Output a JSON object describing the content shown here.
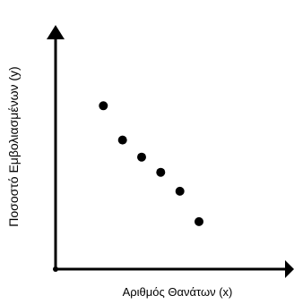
{
  "chart_data": {
    "type": "scatter",
    "title": "",
    "xlabel": "Αριθμός Θανάτων (x)",
    "ylabel": "Ποσοστό Εμβολιασμένων (y)",
    "points": [
      {
        "x": 1.0,
        "y": 8.4
      },
      {
        "x": 2.0,
        "y": 6.6
      },
      {
        "x": 3.0,
        "y": 5.7
      },
      {
        "x": 4.0,
        "y": 4.9
      },
      {
        "x": 5.0,
        "y": 3.9
      },
      {
        "x": 6.0,
        "y": 2.3
      }
    ],
    "xlim": [
      -1.5,
      10.5
    ],
    "ylim": [
      -0.2,
      11.9
    ],
    "grid": false,
    "ticks": false,
    "colors": {
      "axis": "#000000",
      "point": "#000000"
    }
  }
}
